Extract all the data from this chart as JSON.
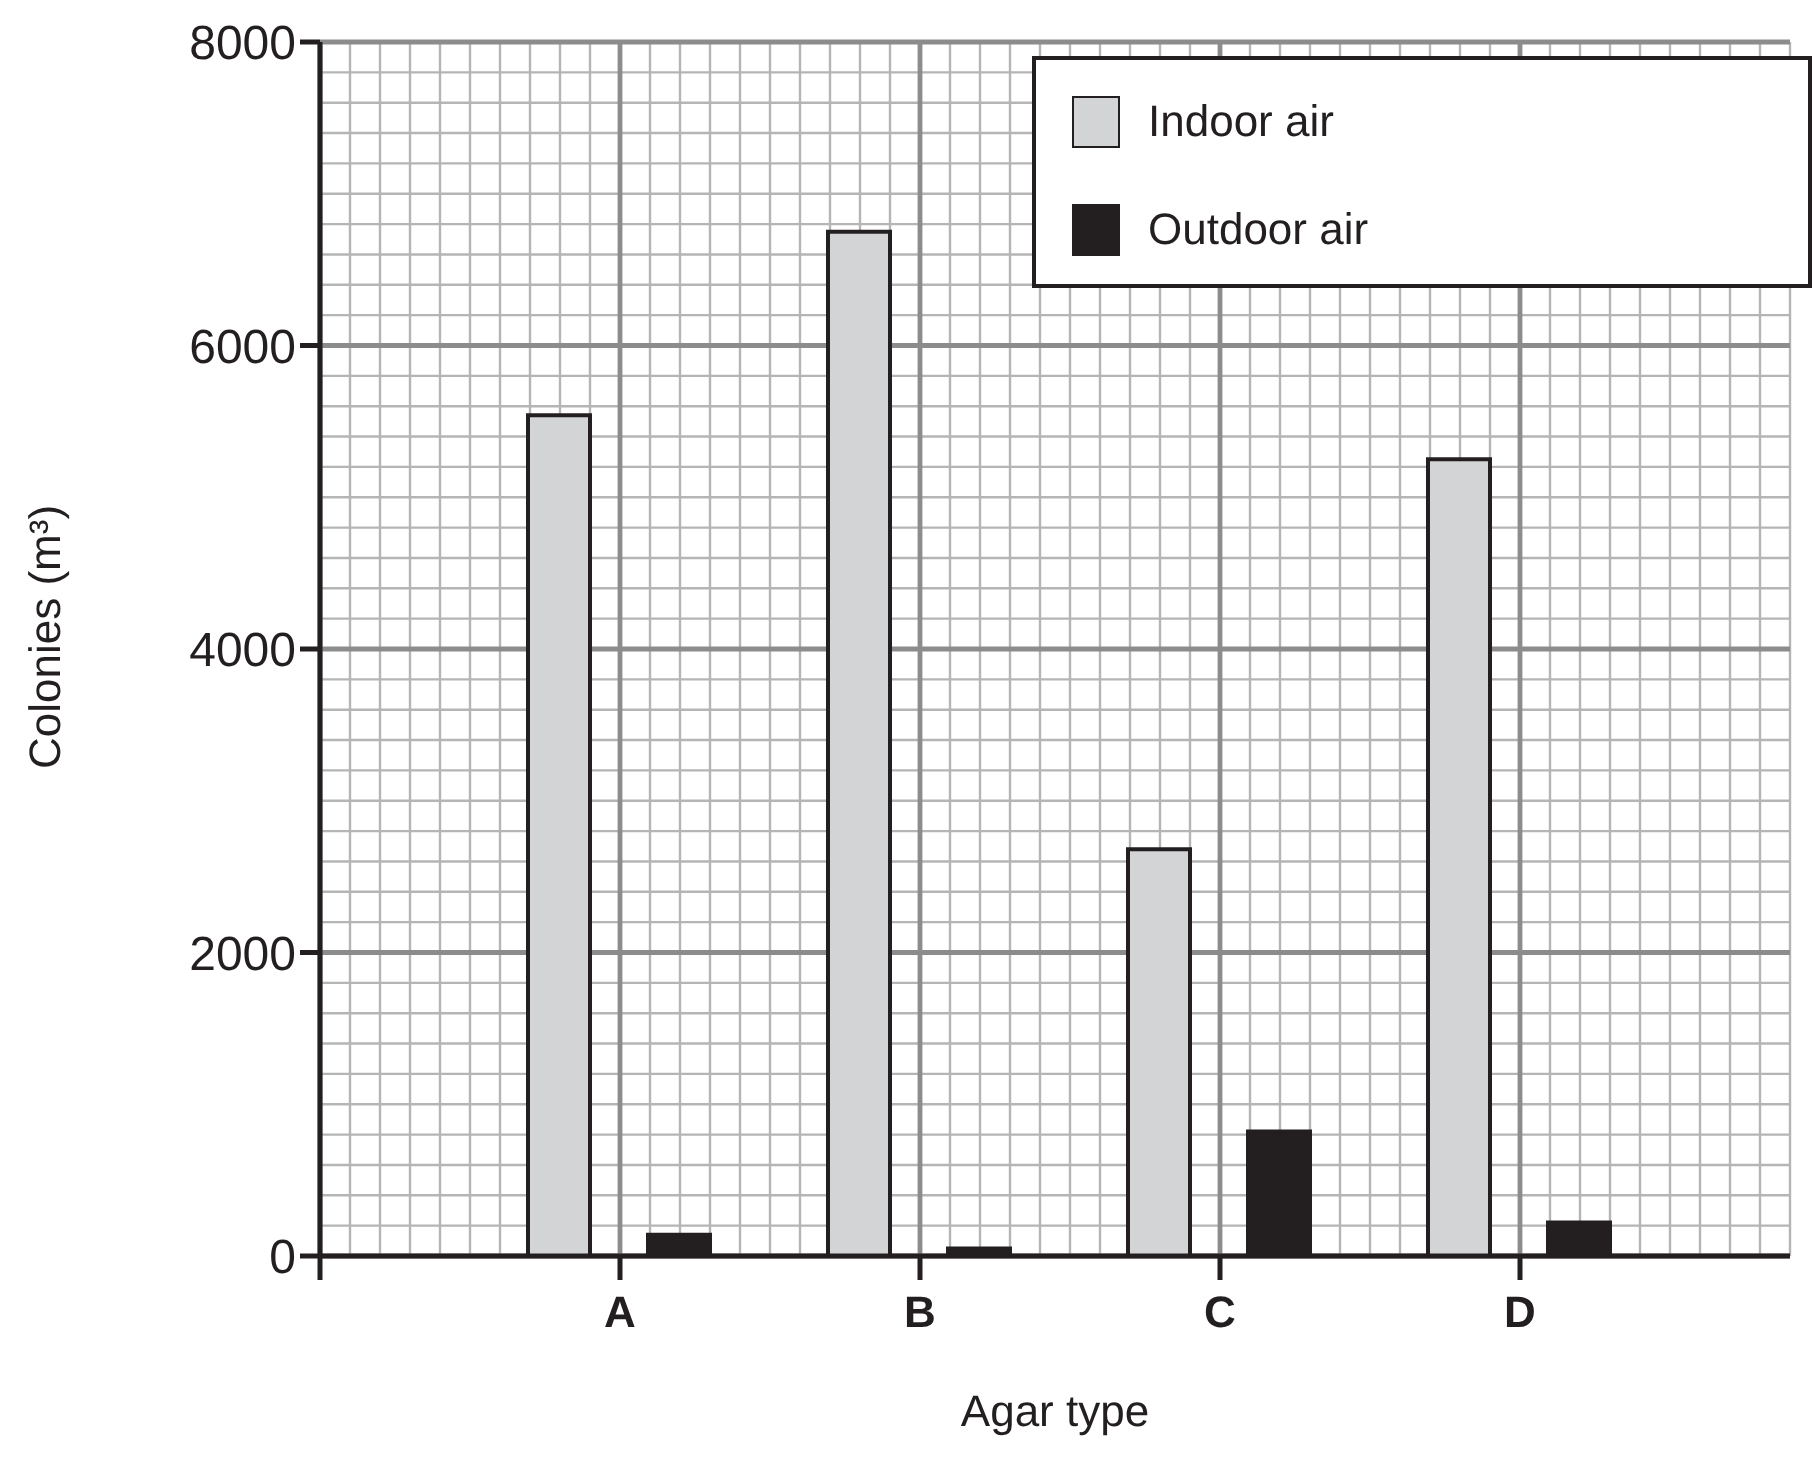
{
  "chart_data": {
    "type": "bar",
    "xlabel": "Agar type",
    "ylabel": "Colonies (m³)",
    "categories": [
      "A",
      "B",
      "C",
      "D"
    ],
    "series": [
      {
        "name": "Indoor air",
        "color": "#d3d4d6",
        "values": [
          5540,
          6750,
          2680,
          5250
        ]
      },
      {
        "name": "Outdoor air",
        "color": "#231f20",
        "values": [
          140,
          50,
          820,
          220
        ]
      }
    ],
    "ylim": [
      0,
      8000
    ],
    "yticks": [
      0,
      2000,
      4000,
      6000,
      8000
    ],
    "grid": true,
    "legend": "top right"
  }
}
